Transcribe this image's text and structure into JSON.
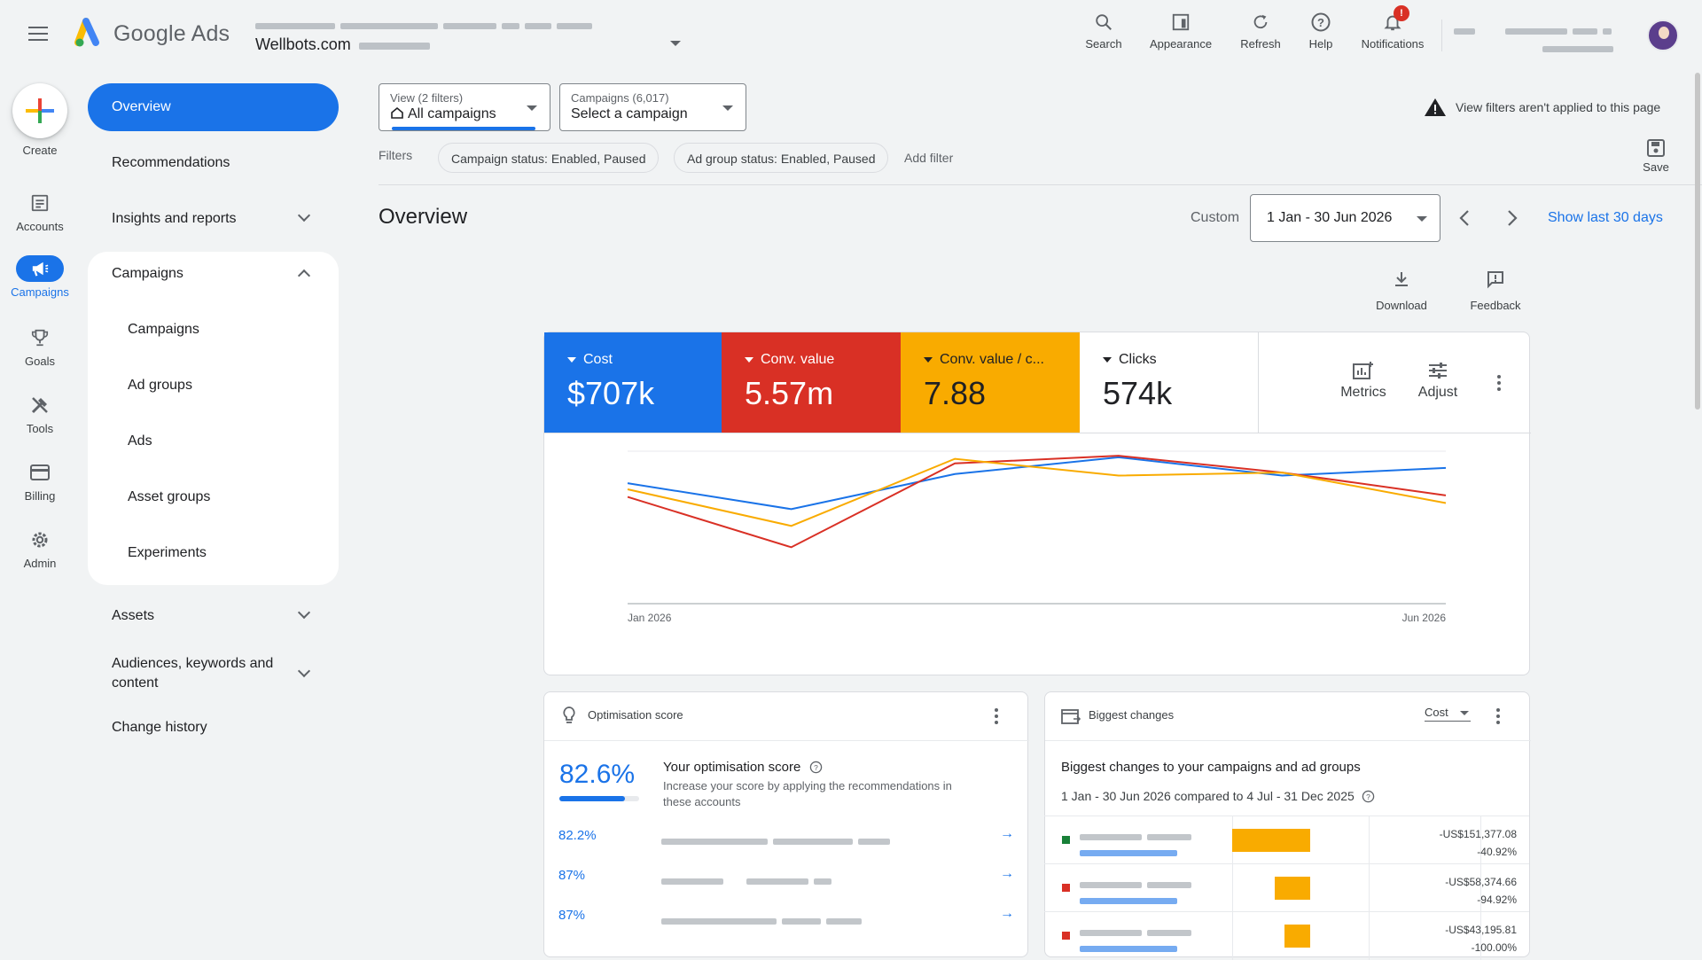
{
  "header": {
    "brand": "Google Ads",
    "account_name": "Wellbots.com",
    "buttons": [
      "Search",
      "Appearance",
      "Refresh",
      "Help",
      "Notifications"
    ],
    "notification_badge": "!"
  },
  "rail": {
    "create": "Create",
    "items": [
      "Accounts",
      "Campaigns",
      "Goals",
      "Tools",
      "Billing",
      "Admin"
    ]
  },
  "nav": {
    "overview": "Overview",
    "recommendations": "Recommendations",
    "insights": "Insights and reports",
    "campaigns_group": "Campaigns",
    "sub": [
      "Campaigns",
      "Ad groups",
      "Ads",
      "Asset groups",
      "Experiments"
    ],
    "assets": "Assets",
    "audiences_line1": "Audiences, keywords and",
    "audiences_line2": "content",
    "change_history": "Change history"
  },
  "filters": {
    "view_small": "View (2 filters)",
    "view_big": "All campaigns",
    "campaigns_small": "Campaigns (6,017)",
    "campaigns_big": "Select a campaign",
    "notice": "View filters aren't applied to this page",
    "label": "Filters",
    "chips": [
      "Campaign status: Enabled, Paused",
      "Ad group status: Enabled, Paused"
    ],
    "add": "Add filter",
    "save": "Save"
  },
  "overview": {
    "title": "Overview",
    "range_label": "Custom",
    "range": "1 Jan - 30 Jun 2026",
    "show_last": "Show last 30 days",
    "download": "Download",
    "feedback": "Feedback"
  },
  "metrics": [
    {
      "label": "Cost",
      "value": "$707k",
      "color": "#1a73e8"
    },
    {
      "label": "Conv. value",
      "value": "5.57m",
      "color": "#d93025"
    },
    {
      "label": "Conv. value / c...",
      "value": "7.88",
      "color": "#f9ab00"
    },
    {
      "label": "Clicks",
      "value": "574k",
      "color": "#ffffff"
    }
  ],
  "metric_tools": {
    "metrics": "Metrics",
    "adjust": "Adjust"
  },
  "chart_data": {
    "type": "line",
    "x": [
      "Jan 2026",
      "Feb 2026",
      "Mar 2026",
      "Apr 2026",
      "May 2026",
      "Jun 2026"
    ],
    "xtick_labels": [
      "Jan 2026",
      "Jun 2026"
    ],
    "ylim": [
      0,
      1
    ],
    "grid": true,
    "series": [
      {
        "color": "#1a73e8",
        "values": [
          0.79,
          0.62,
          0.85,
          0.96,
          0.84,
          0.89
        ]
      },
      {
        "color": "#d93025",
        "values": [
          0.7,
          0.37,
          0.92,
          0.97,
          0.86,
          0.71
        ]
      },
      {
        "color": "#f9ab00",
        "values": [
          0.75,
          0.51,
          0.95,
          0.84,
          0.86,
          0.66
        ]
      }
    ]
  },
  "optimisation": {
    "header": "Optimisation score",
    "score": "82.6%",
    "score_fraction": 0.826,
    "title": "Your optimisation score",
    "desc1": "Increase your score by applying the recommendations in",
    "desc2": "these accounts",
    "rows": [
      "82.2%",
      "87%",
      "87%"
    ]
  },
  "changes": {
    "header": "Biggest changes",
    "metric": "Cost",
    "title": "Biggest changes to your campaigns and ad groups",
    "subtitle": "1 Jan - 30 Jun 2026 compared to 4 Jul - 31 Dec 2025",
    "rows": [
      {
        "amount": "-US$151,377.08",
        "pct": "-40.92%",
        "bar_fraction": 1.0,
        "marker": "#188038"
      },
      {
        "amount": "-US$58,374.66",
        "pct": "-94.92%",
        "bar_fraction": 0.45,
        "marker": "#d93025"
      },
      {
        "amount": "-US$43,195.81",
        "pct": "-100.00%",
        "bar_fraction": 0.33,
        "marker": "#d93025"
      }
    ]
  }
}
